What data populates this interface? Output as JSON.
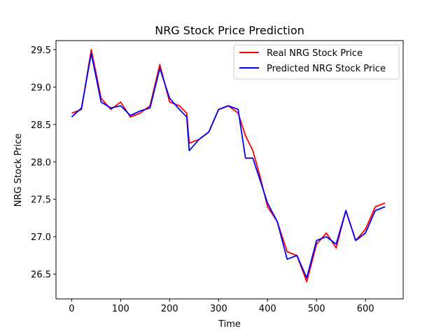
{
  "chart_data": {
    "type": "line",
    "title": "NRG Stock Price Prediction",
    "xlabel": "Time",
    "ylabel": "NRG Stock Price",
    "xlim": [
      -32,
      677
    ],
    "ylim": [
      26.17,
      29.62
    ],
    "xticks": [
      0,
      100,
      200,
      300,
      400,
      500,
      600
    ],
    "yticks": [
      26.5,
      27.0,
      27.5,
      28.0,
      28.5,
      29.0,
      29.5
    ],
    "ytick_labels": [
      "26.5",
      "27.0",
      "27.5",
      "28.0",
      "28.5",
      "29.0",
      "29.5"
    ],
    "grid": false,
    "legend_position": "top-right",
    "x": [
      0,
      20,
      40,
      60,
      80,
      100,
      120,
      140,
      160,
      180,
      200,
      220,
      235,
      240,
      260,
      280,
      300,
      320,
      340,
      355,
      370,
      385,
      400,
      420,
      440,
      460,
      480,
      500,
      520,
      540,
      560,
      580,
      600,
      620,
      640
    ],
    "series": [
      {
        "name": "Real NRG Stock Price",
        "color": "#ff0000",
        "values": [
          28.65,
          28.7,
          29.5,
          28.85,
          28.7,
          28.8,
          28.6,
          28.65,
          28.75,
          29.3,
          28.8,
          28.75,
          28.65,
          28.25,
          28.3,
          28.4,
          28.7,
          28.75,
          28.65,
          28.35,
          28.15,
          27.8,
          27.4,
          27.2,
          26.8,
          26.75,
          26.4,
          26.9,
          27.05,
          26.85,
          27.35,
          26.95,
          27.1,
          27.4,
          27.45
        ]
      },
      {
        "name": "Predicted NRG Stock Price",
        "color": "#0000ff",
        "values": [
          28.6,
          28.72,
          29.45,
          28.8,
          28.72,
          28.75,
          28.62,
          28.68,
          28.72,
          29.25,
          28.85,
          28.7,
          28.6,
          28.15,
          28.3,
          28.4,
          28.7,
          28.75,
          28.7,
          28.05,
          28.05,
          27.75,
          27.45,
          27.2,
          26.7,
          26.75,
          26.45,
          26.95,
          27.0,
          26.9,
          27.35,
          26.95,
          27.05,
          27.35,
          27.4
        ]
      }
    ]
  }
}
